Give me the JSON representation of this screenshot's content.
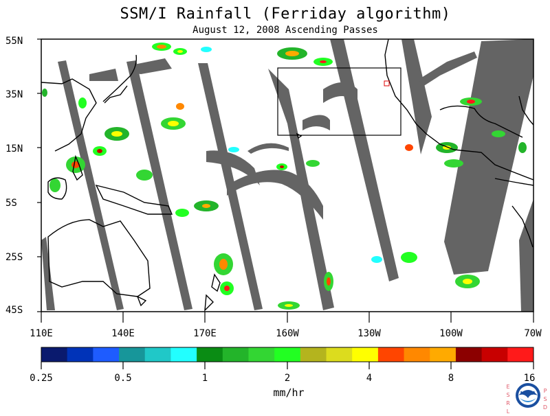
{
  "title": "SSM/I Rainfall (Ferriday algorithm)",
  "subtitle": "August 12, 2008  Ascending Passes",
  "map": {
    "projection": "cylindrical",
    "lon_range": [
      "110E",
      "70W"
    ],
    "lat_range": [
      "45S",
      "55N"
    ],
    "lat_labels": [
      "55N",
      "35N",
      "15N",
      "5S",
      "25S",
      "45S"
    ],
    "lon_labels": [
      "110E",
      "140E",
      "170E",
      "160W",
      "130W",
      "100W",
      "70W"
    ],
    "missing_data_color": "#646464",
    "coast_color": "#000000"
  },
  "colorbar": {
    "label": "mm/hr",
    "tick_labels": [
      "0.25",
      "0.5",
      "1",
      "2",
      "4",
      "8",
      "16"
    ],
    "colors": [
      "#0a1a6e",
      "#0033b8",
      "#1e5cff",
      "#17969a",
      "#20c8c8",
      "#22ffff",
      "#0a8c14",
      "#23b42a",
      "#33d633",
      "#22ff22",
      "#b4b41e",
      "#dcdc1e",
      "#ffff00",
      "#ff4500",
      "#ff8800",
      "#ffaa00",
      "#8c0000",
      "#c80000",
      "#ff1a1a"
    ]
  },
  "logo": {
    "name": "noaa-logo",
    "left_letters": "ESRL",
    "right_letters": "PSD",
    "center_text": "NOAA"
  }
}
